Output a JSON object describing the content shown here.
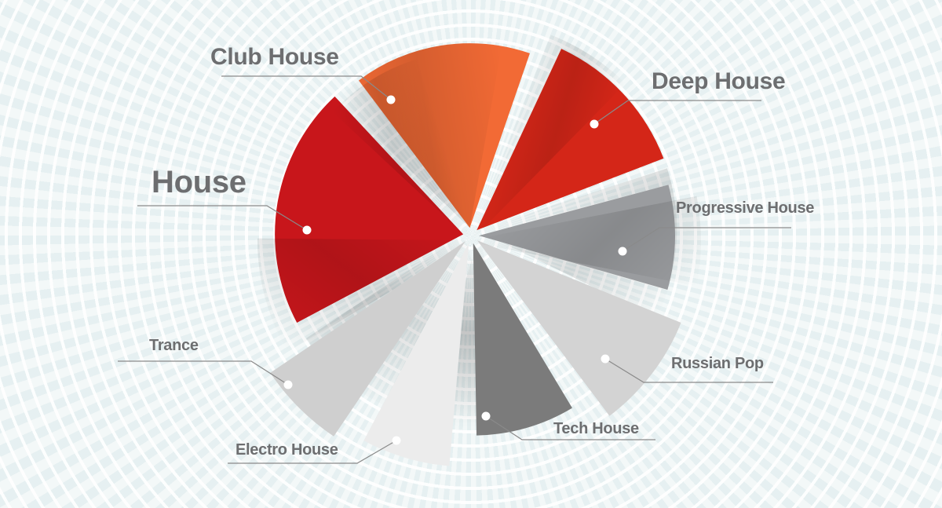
{
  "chart_data": {
    "type": "pie",
    "title": "",
    "categories": [
      "House",
      "Club House",
      "Deep House",
      "Progressive House",
      "Russian Pop",
      "Tech House",
      "Electro House",
      "Trance"
    ],
    "values": [
      75,
      56,
      44,
      31,
      31,
      30,
      23,
      22
    ],
    "colors": [
      "#c8161b",
      "#f26a35",
      "#d42618",
      "#9a9c9f",
      "#d3d3d3",
      "#7b7b7b",
      "#ececec",
      "#cfcfcf"
    ],
    "legend": "none",
    "data_labels": "outside with leader lines"
  }
}
